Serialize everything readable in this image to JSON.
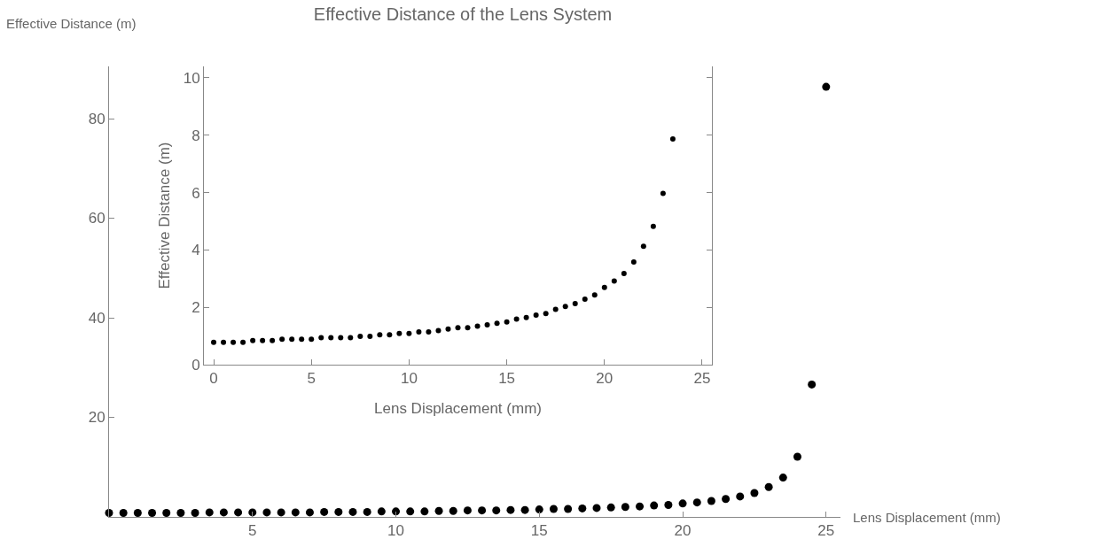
{
  "chart_data": [
    {
      "type": "scatter",
      "title": "Effective Distance of the Lens System",
      "xlabel": "Lens Displacement (mm)",
      "ylabel": "Effective Distance (m)",
      "x": [
        0,
        0.5,
        1,
        1.5,
        2,
        2.5,
        3,
        3.5,
        4,
        4.5,
        5,
        5.5,
        6,
        6.5,
        7,
        7.5,
        8,
        8.5,
        9,
        9.5,
        10,
        10.5,
        11,
        11.5,
        12,
        12.5,
        13,
        13.5,
        14,
        14.5,
        15,
        15.5,
        16,
        16.5,
        17,
        17.5,
        18,
        18.5,
        19,
        19.5,
        20,
        20.5,
        21,
        21.5,
        22,
        22.5,
        23,
        23.5,
        24,
        24.5,
        25
      ],
      "series": [
        {
          "color": "#000000",
          "values": [
            0.8,
            0.8,
            0.8,
            0.8,
            0.8,
            0.8,
            0.8,
            0.9,
            0.9,
            0.9,
            0.9,
            0.9,
            0.9,
            0.9,
            0.9,
            1.0,
            1.0,
            1.0,
            1.0,
            1.1,
            1.1,
            1.1,
            1.1,
            1.2,
            1.2,
            1.3,
            1.3,
            1.3,
            1.4,
            1.4,
            1.5,
            1.6,
            1.6,
            1.7,
            1.8,
            1.9,
            2.0,
            2.1,
            2.3,
            2.4,
            2.7,
            2.9,
            3.2,
            3.6,
            4.1,
            4.8,
            6.0,
            7.9,
            12.1,
            26.6,
            86.4
          ]
        }
      ],
      "xlim": [
        0,
        25.5
      ],
      "ylim": [
        0,
        90.5
      ],
      "xticks": [
        5,
        10,
        15,
        20,
        25
      ],
      "yticks": [
        20,
        40,
        60,
        80
      ],
      "grid": false,
      "marker": "circle"
    },
    {
      "type": "scatter",
      "xlabel": "Lens Displacement (mm)",
      "ylabel": "Effective Distance (m)",
      "x": [
        0,
        0.5,
        1,
        1.5,
        2,
        2.5,
        3,
        3.5,
        4,
        4.5,
        5,
        5.5,
        6,
        6.5,
        7,
        7.5,
        8,
        8.5,
        9,
        9.5,
        10,
        10.5,
        11,
        11.5,
        12,
        12.5,
        13,
        13.5,
        14,
        14.5,
        15,
        15.5,
        16,
        16.5,
        17,
        17.5,
        18,
        18.5,
        19,
        19.5,
        20,
        20.5,
        21,
        21.5,
        22,
        22.5,
        23,
        23.5
      ],
      "series": [
        {
          "color": "#000000",
          "values": [
            0.78,
            0.78,
            0.78,
            0.78,
            0.84,
            0.84,
            0.84,
            0.89,
            0.89,
            0.89,
            0.89,
            0.94,
            0.94,
            0.94,
            0.94,
            0.99,
            0.99,
            1.04,
            1.04,
            1.09,
            1.09,
            1.14,
            1.14,
            1.19,
            1.24,
            1.29,
            1.29,
            1.34,
            1.39,
            1.44,
            1.49,
            1.59,
            1.64,
            1.73,
            1.78,
            1.93,
            2.03,
            2.13,
            2.28,
            2.43,
            2.69,
            2.92,
            3.18,
            3.58,
            4.13,
            4.82,
            5.97,
            7.87
          ]
        }
      ],
      "xlim": [
        -0.5,
        25.5
      ],
      "ylim": [
        0,
        10.4
      ],
      "xticks": [
        0,
        5,
        10,
        15,
        20,
        25
      ],
      "yticks": [
        0,
        2,
        4,
        6,
        8,
        10
      ],
      "grid": false,
      "marker": "circle"
    }
  ]
}
